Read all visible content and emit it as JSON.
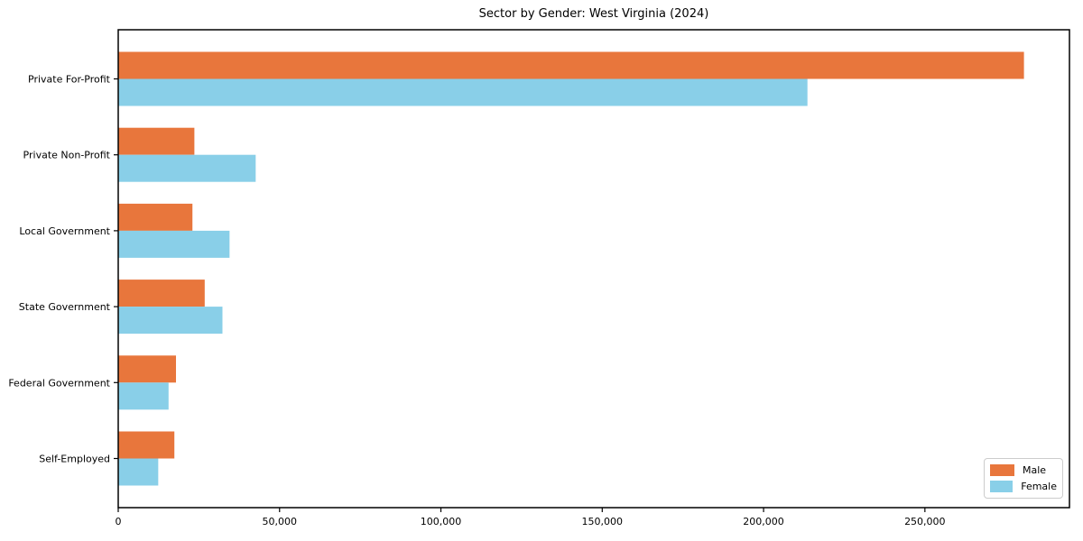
{
  "chart_data": {
    "type": "bar",
    "orientation": "horizontal",
    "title": "Sector by Gender: West Virginia (2024)",
    "categories": [
      "Private For-Profit",
      "Private Non-Profit",
      "Local Government",
      "State Government",
      "Federal Government",
      "Self-Employed"
    ],
    "series": [
      {
        "name": "Male",
        "color": "#e8763c",
        "values": [
          280700,
          23600,
          23000,
          26800,
          17900,
          17400
        ]
      },
      {
        "name": "Female",
        "color": "#89cfe8",
        "values": [
          213600,
          42600,
          34500,
          32300,
          15600,
          12400
        ]
      }
    ],
    "xlim": [
      0,
      294800
    ],
    "x_ticks": [
      0,
      50000,
      100000,
      150000,
      200000,
      250000
    ],
    "x_tick_labels": [
      "0",
      "50,000",
      "100,000",
      "150,000",
      "200,000",
      "250,000"
    ],
    "grid": false,
    "legend_position": "lower right",
    "axis_color": "#000000",
    "text_color": "#000000",
    "background_color": "#ffffff"
  }
}
